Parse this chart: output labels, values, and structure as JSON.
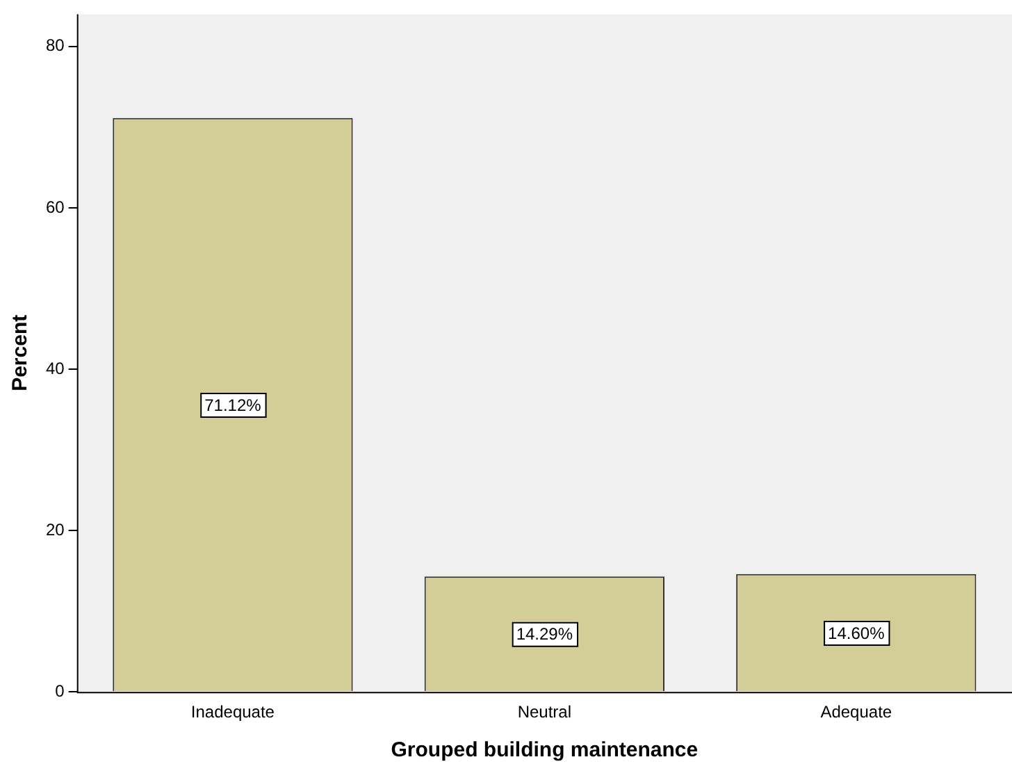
{
  "chart_data": {
    "type": "bar",
    "xlabel": "Grouped building maintenance",
    "ylabel": "Percent",
    "categories": [
      "Inadequate",
      "Neutral",
      "Adequate"
    ],
    "values": [
      71.12,
      14.29,
      14.6
    ],
    "color": "#d3ce97",
    "value_labels": [
      "71.12%",
      "14.29%",
      "14.60%"
    ],
    "ylim": [
      0,
      84
    ],
    "yticks": [
      0,
      20,
      40,
      60,
      80
    ],
    "grid": false,
    "legend": false
  }
}
